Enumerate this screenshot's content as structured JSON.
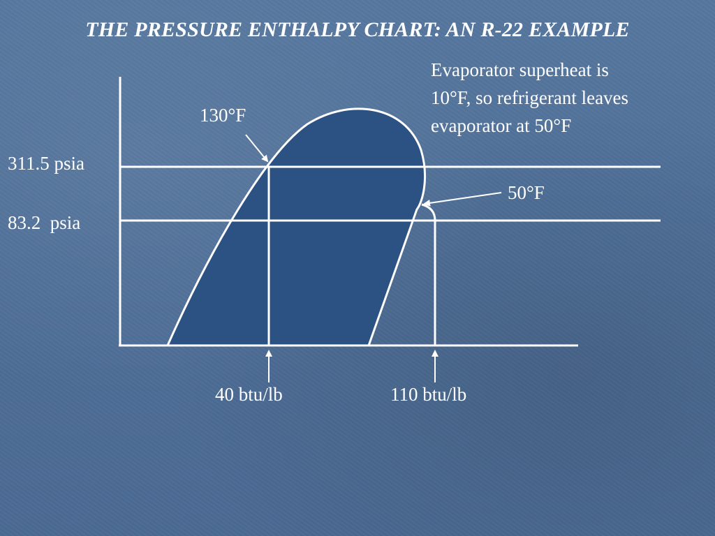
{
  "title": "THE PRESSURE ENTHALPY CHART: AN R-22 EXAMPLE",
  "note": {
    "lines": [
      "Evaporator superheat is",
      "10°F, so refrigerant leaves",
      "evaporator at 50°F"
    ]
  },
  "labels": {
    "temp_high": "130°F",
    "temp_low": "50°F",
    "pressure_high": "311.5 psia",
    "pressure_low": "83.2  psia",
    "enthalpy_low": "40 btu/lb",
    "enthalpy_high": "110 btu/lb"
  },
  "colors": {
    "background": "#4f6f98",
    "dome_fill": "#2b5282",
    "line": "#ffffff"
  }
}
